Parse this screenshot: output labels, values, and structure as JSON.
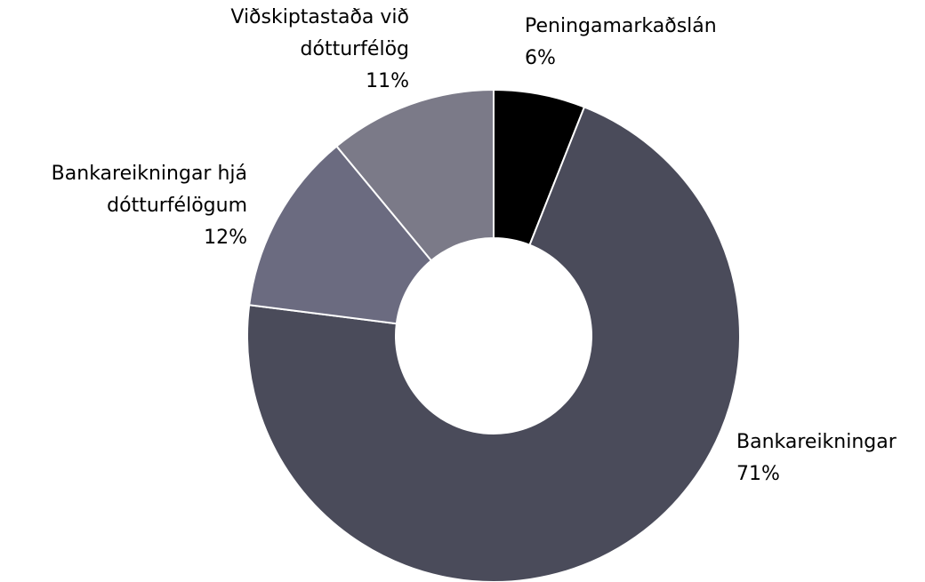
{
  "chart_data": {
    "type": "donut",
    "categories": [
      "Peningamarkaðslán",
      "Bankareikningar",
      "Bankareikningar hjá dótturfélögum",
      "Viðskiptastaða við dótturfélög"
    ],
    "values": [
      6,
      71,
      12,
      11
    ],
    "value_labels": [
      "6%",
      "71%",
      "12%",
      "11%"
    ],
    "colors": [
      "#000000",
      "#4a4b5a",
      "#6b6b80",
      "#7b7a88"
    ]
  }
}
